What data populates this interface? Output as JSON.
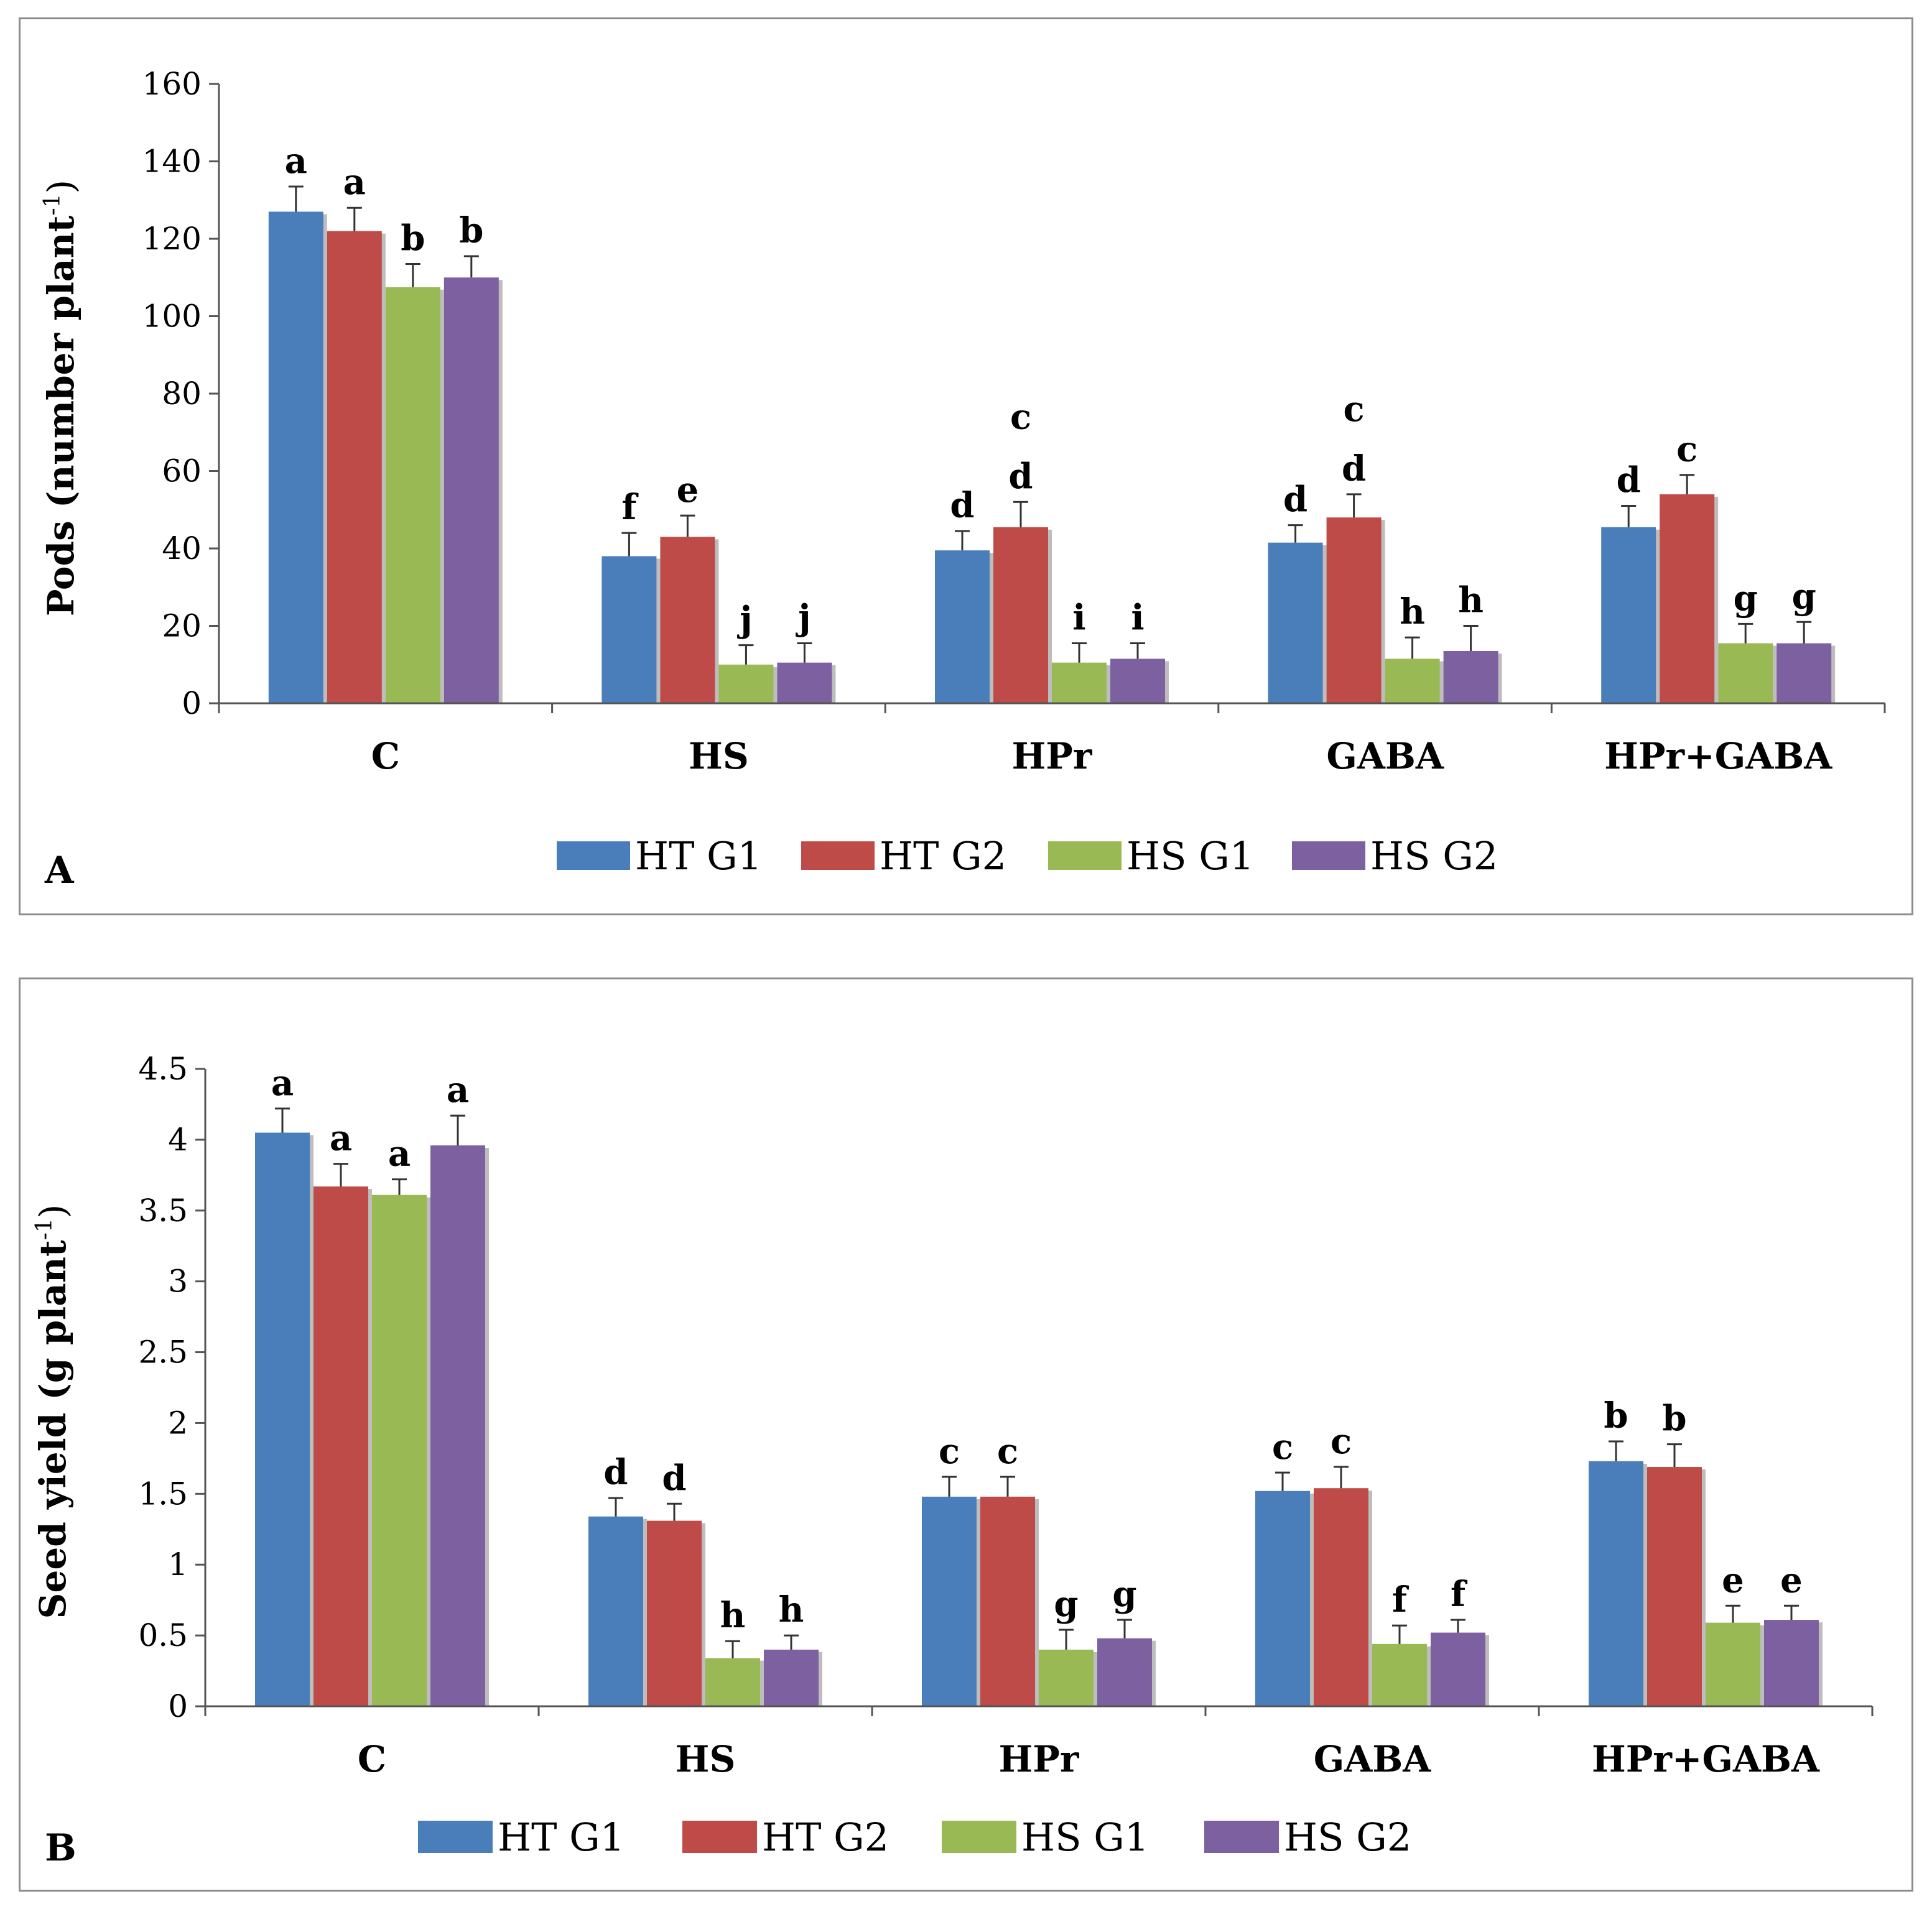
{
  "chart_data": [
    {
      "type": "bar",
      "panel_label": "A",
      "ylabel": "Pods (number plant",
      "ylabel_superscript": "-1",
      "ylabel_close": ")",
      "ylim": [
        0,
        160
      ],
      "yticks": [
        0,
        20,
        40,
        60,
        80,
        100,
        120,
        140,
        160
      ],
      "ytick_labels": [
        "0",
        "20",
        "40",
        "60",
        "80",
        "100",
        "120",
        "140",
        "160"
      ],
      "categories": [
        "C",
        "HS",
        "HPr",
        "GABA",
        "HPr+GABA"
      ],
      "legend_position": "bottom",
      "series": [
        {
          "name": "HT G1",
          "color": "#4a7ebb",
          "values": [
            127,
            38,
            39.5,
            41.5,
            45.5
          ],
          "errors": [
            6.5,
            6,
            5,
            4.5,
            5.5
          ],
          "letters": [
            "a",
            "f",
            "d",
            "d",
            "d"
          ]
        },
        {
          "name": "HT G2",
          "color": "#be4b48",
          "values": [
            122,
            43,
            45.5,
            48,
            54
          ],
          "errors": [
            6,
            5.5,
            6.5,
            6,
            5
          ],
          "letters": [
            "a",
            "e",
            "c\nd",
            "c\nd",
            "c"
          ]
        },
        {
          "name": "HS G1",
          "color": "#98b954",
          "values": [
            107.5,
            10,
            10.5,
            11.5,
            15.5
          ],
          "errors": [
            6,
            5,
            5,
            5.5,
            5
          ],
          "letters": [
            "b",
            "j",
            "i",
            "h",
            "g"
          ]
        },
        {
          "name": "HS G2",
          "color": "#7d60a0",
          "values": [
            110,
            10.5,
            11.5,
            13.5,
            15.5
          ],
          "errors": [
            5.5,
            5,
            4,
            6.5,
            5.5
          ],
          "letters": [
            "b",
            "j",
            "i",
            "h",
            "g"
          ]
        }
      ]
    },
    {
      "type": "bar",
      "panel_label": "B",
      "ylabel": "Seed yield  (g plant",
      "ylabel_superscript": "-1",
      "ylabel_close": ")",
      "ylim": [
        0,
        4.5
      ],
      "yticks": [
        0,
        0.5,
        1,
        1.5,
        2,
        2.5,
        3,
        3.5,
        4,
        4.5
      ],
      "ytick_labels": [
        "0",
        "0.5",
        "1",
        "1.5",
        "2",
        "2.5",
        "3",
        "3.5",
        "4",
        "4.5"
      ],
      "categories": [
        "C",
        "HS",
        "HPr",
        "GABA",
        "HPr+GABA"
      ],
      "legend_position": "bottom",
      "series": [
        {
          "name": "HT G1",
          "color": "#4a7ebb",
          "values": [
            4.05,
            1.34,
            1.48,
            1.52,
            1.73
          ],
          "errors": [
            0.17,
            0.13,
            0.14,
            0.13,
            0.14
          ],
          "letters": [
            "a",
            "d",
            "c",
            "c",
            "b"
          ]
        },
        {
          "name": "HT G2",
          "color": "#be4b48",
          "values": [
            3.67,
            1.31,
            1.48,
            1.54,
            1.69
          ],
          "errors": [
            0.16,
            0.12,
            0.14,
            0.15,
            0.16
          ],
          "letters": [
            "a",
            "d",
            "c",
            "c",
            "b"
          ]
        },
        {
          "name": "HS G1",
          "color": "#98b954",
          "values": [
            3.61,
            0.34,
            0.4,
            0.44,
            0.59
          ],
          "errors": [
            0.11,
            0.12,
            0.14,
            0.13,
            0.12
          ],
          "letters": [
            "a",
            "h",
            "g",
            "f",
            "e"
          ]
        },
        {
          "name": "HS G2",
          "color": "#7d60a0",
          "values": [
            3.96,
            0.4,
            0.48,
            0.52,
            0.61
          ],
          "errors": [
            0.21,
            0.1,
            0.13,
            0.09,
            0.1
          ],
          "letters": [
            "a",
            "h",
            "g",
            "f",
            "e"
          ]
        }
      ]
    }
  ]
}
